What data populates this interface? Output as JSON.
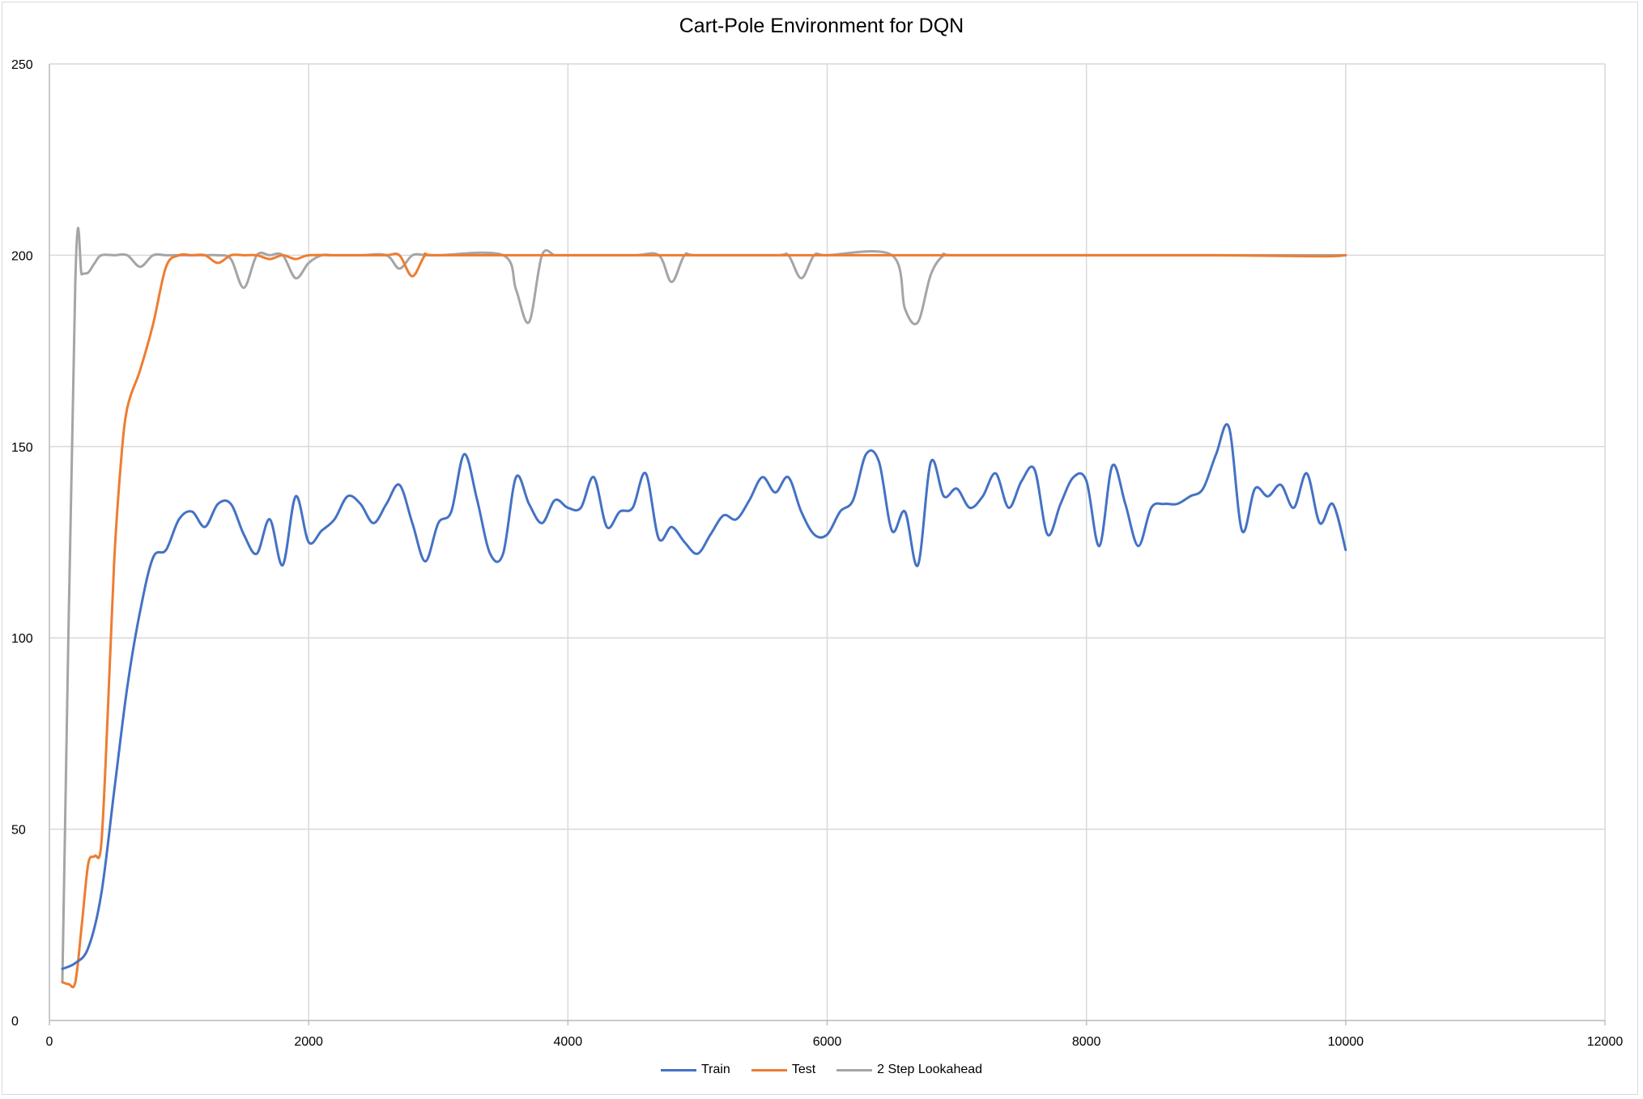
{
  "chart_data": {
    "type": "line",
    "title": "Cart-Pole Environment for DQN",
    "xlabel": "",
    "ylabel": "",
    "xlim": [
      0,
      12000
    ],
    "ylim": [
      0,
      250
    ],
    "xticks": [
      0,
      2000,
      4000,
      6000,
      8000,
      10000,
      12000
    ],
    "yticks": [
      0,
      50,
      100,
      150,
      200,
      250
    ],
    "grid": true,
    "legend_position": "bottom",
    "series": [
      {
        "name": "Train",
        "color": "#4472C4",
        "points": [
          [
            100,
            13.5
          ],
          [
            200,
            15
          ],
          [
            300,
            19
          ],
          [
            400,
            33
          ],
          [
            500,
            60
          ],
          [
            600,
            87
          ],
          [
            700,
            107
          ],
          [
            800,
            121
          ],
          [
            900,
            123
          ],
          [
            1000,
            131
          ],
          [
            1100,
            133
          ],
          [
            1200,
            129
          ],
          [
            1300,
            135
          ],
          [
            1400,
            135
          ],
          [
            1500,
            127
          ],
          [
            1600,
            122
          ],
          [
            1700,
            131
          ],
          [
            1800,
            119
          ],
          [
            1900,
            137
          ],
          [
            2000,
            125
          ],
          [
            2100,
            128
          ],
          [
            2200,
            131
          ],
          [
            2300,
            137
          ],
          [
            2400,
            135
          ],
          [
            2500,
            130
          ],
          [
            2600,
            135
          ],
          [
            2700,
            140
          ],
          [
            2800,
            130
          ],
          [
            2900,
            120
          ],
          [
            3000,
            130
          ],
          [
            3100,
            133
          ],
          [
            3200,
            148
          ],
          [
            3300,
            136
          ],
          [
            3400,
            122
          ],
          [
            3500,
            122
          ],
          [
            3600,
            142
          ],
          [
            3700,
            135
          ],
          [
            3800,
            130
          ],
          [
            3900,
            136
          ],
          [
            4000,
            134
          ],
          [
            4100,
            134
          ],
          [
            4200,
            142
          ],
          [
            4300,
            129
          ],
          [
            4400,
            133
          ],
          [
            4500,
            134
          ],
          [
            4600,
            143
          ],
          [
            4700,
            126
          ],
          [
            4800,
            129
          ],
          [
            4900,
            125
          ],
          [
            5000,
            122
          ],
          [
            5100,
            127
          ],
          [
            5200,
            132
          ],
          [
            5300,
            131
          ],
          [
            5400,
            136
          ],
          [
            5500,
            142
          ],
          [
            5600,
            138
          ],
          [
            5700,
            142
          ],
          [
            5800,
            133
          ],
          [
            5900,
            127
          ],
          [
            6000,
            127
          ],
          [
            6100,
            133
          ],
          [
            6200,
            136
          ],
          [
            6300,
            148
          ],
          [
            6400,
            146
          ],
          [
            6500,
            128
          ],
          [
            6600,
            133
          ],
          [
            6700,
            119
          ],
          [
            6800,
            146
          ],
          [
            6900,
            137
          ],
          [
            7000,
            139
          ],
          [
            7100,
            134
          ],
          [
            7200,
            137
          ],
          [
            7300,
            143
          ],
          [
            7400,
            134
          ],
          [
            7500,
            141
          ],
          [
            7600,
            144
          ],
          [
            7700,
            127
          ],
          [
            7800,
            135
          ],
          [
            7900,
            142
          ],
          [
            8000,
            141
          ],
          [
            8100,
            124
          ],
          [
            8200,
            145
          ],
          [
            8300,
            135
          ],
          [
            8400,
            124
          ],
          [
            8500,
            134
          ],
          [
            8600,
            135
          ],
          [
            8700,
            135
          ],
          [
            8800,
            137
          ],
          [
            8900,
            139
          ],
          [
            9000,
            148
          ],
          [
            9100,
            155
          ],
          [
            9200,
            128
          ],
          [
            9300,
            139
          ],
          [
            9400,
            137
          ],
          [
            9500,
            140
          ],
          [
            9600,
            134
          ],
          [
            9700,
            143
          ],
          [
            9800,
            130
          ],
          [
            9900,
            135
          ],
          [
            10000,
            123
          ]
        ]
      },
      {
        "name": "Test",
        "color": "#ED7D31",
        "points": [
          [
            100,
            10
          ],
          [
            150,
            9.5
          ],
          [
            200,
            10
          ],
          [
            250,
            25
          ],
          [
            300,
            41
          ],
          [
            350,
            43
          ],
          [
            400,
            46
          ],
          [
            450,
            80
          ],
          [
            500,
            120
          ],
          [
            550,
            145
          ],
          [
            600,
            160
          ],
          [
            700,
            170
          ],
          [
            800,
            182
          ],
          [
            900,
            197
          ],
          [
            1000,
            200
          ],
          [
            1100,
            200
          ],
          [
            1200,
            200
          ],
          [
            1300,
            198
          ],
          [
            1400,
            200
          ],
          [
            1500,
            200
          ],
          [
            1600,
            200
          ],
          [
            1700,
            199
          ],
          [
            1800,
            200
          ],
          [
            1900,
            199
          ],
          [
            2000,
            200
          ],
          [
            2200,
            200
          ],
          [
            2400,
            200
          ],
          [
            2600,
            200
          ],
          [
            2700,
            200
          ],
          [
            2800,
            194.5
          ],
          [
            2900,
            200
          ],
          [
            3000,
            200
          ],
          [
            4000,
            200
          ],
          [
            5000,
            200
          ],
          [
            6000,
            200
          ],
          [
            7000,
            200
          ],
          [
            8000,
            200
          ],
          [
            9000,
            200
          ],
          [
            9800,
            199.7
          ],
          [
            10000,
            200
          ]
        ]
      },
      {
        "name": "2 Step Lookahead",
        "color": "#A5A5A5",
        "points": [
          [
            100,
            10
          ],
          [
            200,
            193
          ],
          [
            250,
            195
          ],
          [
            300,
            195.5
          ],
          [
            350,
            198
          ],
          [
            400,
            200
          ],
          [
            500,
            200
          ],
          [
            600,
            200
          ],
          [
            700,
            197
          ],
          [
            800,
            200
          ],
          [
            900,
            200
          ],
          [
            1000,
            200
          ],
          [
            1100,
            200
          ],
          [
            1200,
            200
          ],
          [
            1300,
            200
          ],
          [
            1400,
            199
          ],
          [
            1500,
            191.5
          ],
          [
            1600,
            200
          ],
          [
            1700,
            200
          ],
          [
            1800,
            200
          ],
          [
            1900,
            194
          ],
          [
            2000,
            198
          ],
          [
            2100,
            200
          ],
          [
            2200,
            200
          ],
          [
            2400,
            200
          ],
          [
            2600,
            200
          ],
          [
            2700,
            196.5
          ],
          [
            2800,
            200
          ],
          [
            2900,
            200
          ],
          [
            3000,
            200
          ],
          [
            3500,
            200
          ],
          [
            3600,
            191
          ],
          [
            3700,
            182.5
          ],
          [
            3800,
            200
          ],
          [
            3900,
            200
          ],
          [
            4000,
            200
          ],
          [
            4500,
            200
          ],
          [
            4700,
            200
          ],
          [
            4800,
            193
          ],
          [
            4900,
            200
          ],
          [
            5000,
            200
          ],
          [
            5600,
            200
          ],
          [
            5700,
            200
          ],
          [
            5800,
            194
          ],
          [
            5900,
            200
          ],
          [
            6000,
            200
          ],
          [
            6500,
            200
          ],
          [
            6600,
            186
          ],
          [
            6700,
            182.5
          ],
          [
            6800,
            195
          ],
          [
            6900,
            200
          ],
          [
            7000,
            200
          ],
          [
            8000,
            200
          ],
          [
            9000,
            200
          ],
          [
            10000,
            200
          ]
        ]
      }
    ]
  }
}
